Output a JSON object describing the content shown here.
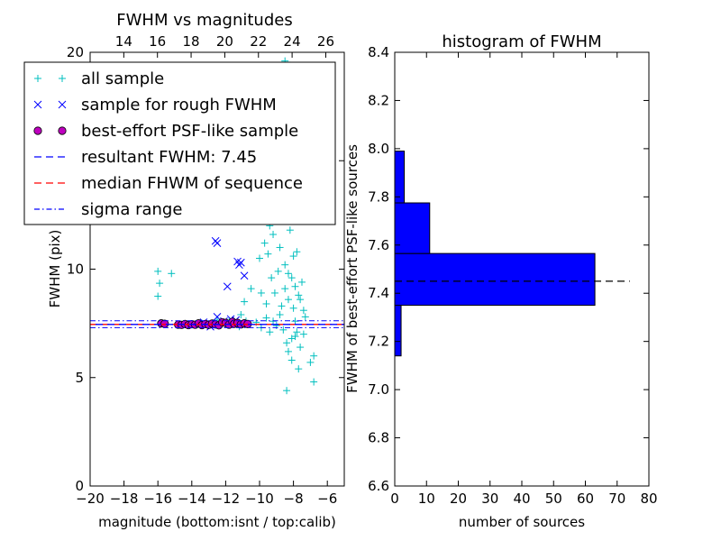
{
  "chart_data": [
    {
      "type": "scatter",
      "title": "FWHM vs magnitudes",
      "xlabel": "magnitude (bottom:isnt / top:calib)",
      "ylabel": "FWHM (pix)",
      "xlim": [
        -20,
        -5
      ],
      "ylim": [
        0,
        20
      ],
      "x_ticks": [
        -20,
        -18,
        -16,
        -14,
        -12,
        -10,
        -8,
        -6
      ],
      "x_tick_labels": [
        "−20",
        "−18",
        "−16",
        "−14",
        "−12",
        "−10",
        "−8",
        "−6"
      ],
      "y_ticks": [
        0,
        5,
        10,
        15,
        20
      ],
      "y_tick_labels": [
        "0",
        "5",
        "10",
        "15",
        "20"
      ],
      "top_xlim": [
        12,
        27.1
      ],
      "top_x_ticks": [
        14,
        16,
        18,
        20,
        22,
        24,
        26
      ],
      "top_x_tick_labels": [
        "14",
        "16",
        "18",
        "20",
        "22",
        "24",
        "26"
      ],
      "legend_position": "upper-left",
      "lines": {
        "resultant_fwhm": 7.45,
        "median_fwhm": 7.45,
        "sigma_range": [
          7.3,
          7.62
        ]
      },
      "series": [
        {
          "name": "all sample",
          "marker": "plus",
          "color": "#00bfbf",
          "points": [
            [
              -16,
              9.9
            ],
            [
              -15.9,
              9.35
            ],
            [
              -16,
              8.75
            ],
            [
              -15.2,
              9.8
            ],
            [
              -13.4,
              7.5
            ],
            [
              -12.5,
              7.65
            ],
            [
              -11.8,
              7.6
            ],
            [
              -11.2,
              7.35
            ],
            [
              -10.8,
              7.6
            ],
            [
              -10.2,
              7.55
            ],
            [
              -9.9,
              7.3
            ],
            [
              -9.6,
              7.75
            ],
            [
              -9.4,
              7.1
            ],
            [
              -9.2,
              7.6
            ],
            [
              -9,
              7.4
            ],
            [
              -8.8,
              7.9
            ],
            [
              -8.6,
              7.2
            ],
            [
              -8.4,
              6.6
            ],
            [
              -8.3,
              6.2
            ],
            [
              -8.1,
              5.8
            ],
            [
              -7.9,
              6.9
            ],
            [
              -7.7,
              5.4
            ],
            [
              -8.4,
              4.4
            ],
            [
              -6.8,
              4.8
            ],
            [
              -7,
              5.7
            ],
            [
              -6.8,
              6
            ],
            [
              -10,
              10.5
            ],
            [
              -9.7,
              11.2
            ],
            [
              -9.4,
              12
            ],
            [
              -9.2,
              11.6
            ],
            [
              -9,
              13
            ],
            [
              -8.8,
              11
            ],
            [
              -8.6,
              12.5
            ],
            [
              -8.5,
              10.2
            ],
            [
              -8.3,
              9.8
            ],
            [
              -8.2,
              11.8
            ],
            [
              -8,
              10.6
            ],
            [
              -7.9,
              9.2
            ],
            [
              -7.8,
              10.8
            ],
            [
              -7.6,
              8.6
            ],
            [
              -7.5,
              9.4
            ],
            [
              -7.4,
              8.1
            ],
            [
              -7.3,
              7.8
            ],
            [
              -9.6,
              8.4
            ],
            [
              -9.3,
              9.6
            ],
            [
              -9.1,
              8.9
            ],
            [
              -8.9,
              9.9
            ],
            [
              -8.7,
              8.3
            ],
            [
              -8.5,
              9.1
            ],
            [
              -8.3,
              8.6
            ],
            [
              -8.1,
              9.6
            ],
            [
              -8,
              8.2
            ],
            [
              -7.9,
              7.6
            ],
            [
              -7.7,
              8.8
            ],
            [
              -8.8,
              14.5
            ],
            [
              -8.6,
              15.5
            ],
            [
              -8.5,
              14.8
            ],
            [
              -8.3,
              16
            ],
            [
              -8.4,
              13.6
            ],
            [
              -8.2,
              12.8
            ],
            [
              -9.1,
              18.5
            ],
            [
              -8.5,
              19.6
            ],
            [
              -8.2,
              19.4
            ],
            [
              -8.9,
              17.3
            ],
            [
              -9.2,
              15.8
            ],
            [
              -10.5,
              9.1
            ],
            [
              -10.9,
              8.5
            ],
            [
              -11.1,
              7.9
            ],
            [
              -9.9,
              8.9
            ],
            [
              -9.5,
              10.7
            ],
            [
              -7.6,
              6.4
            ],
            [
              -7.8,
              7.1
            ],
            [
              -8.1,
              6.8
            ],
            [
              -7.4,
              7
            ]
          ]
        },
        {
          "name": "sample for rough FWHM",
          "marker": "x",
          "color": "#0000ff",
          "points": [
            [
              -12.6,
              11.3
            ],
            [
              -12.5,
              11.2
            ],
            [
              -11.3,
              10.35
            ],
            [
              -11.1,
              10.3
            ],
            [
              -11.2,
              10.2
            ],
            [
              -10.9,
              9.7
            ],
            [
              -11.9,
              9.2
            ],
            [
              -12.5,
              7.8
            ],
            [
              -11.7,
              7.7
            ],
            [
              -11.4,
              7.65
            ],
            [
              -12.9,
              7.35
            ],
            [
              -13.3,
              7.55
            ],
            [
              -11,
              7.5
            ],
            [
              -12.1,
              7.6
            ]
          ]
        },
        {
          "name": "best-effort PSF-like sample",
          "marker": "circle",
          "color": "#bf00bf",
          "points": [
            [
              -15.8,
              7.5
            ],
            [
              -15.6,
              7.48
            ],
            [
              -14.8,
              7.44
            ],
            [
              -14.6,
              7.43
            ],
            [
              -14.4,
              7.47
            ],
            [
              -14.2,
              7.42
            ],
            [
              -14,
              7.46
            ],
            [
              -13.8,
              7.44
            ],
            [
              -13.6,
              7.5
            ],
            [
              -13.4,
              7.42
            ],
            [
              -13.2,
              7.47
            ],
            [
              -13,
              7.43
            ],
            [
              -12.8,
              7.49
            ],
            [
              -12.6,
              7.45
            ],
            [
              -12.4,
              7.41
            ],
            [
              -12.2,
              7.55
            ],
            [
              -12,
              7.52
            ],
            [
              -11.8,
              7.44
            ],
            [
              -11.6,
              7.57
            ],
            [
              -11.5,
              7.48
            ],
            [
              -11.3,
              7.52
            ],
            [
              -11.1,
              7.45
            ],
            [
              -10.9,
              7.5
            ],
            [
              -10.7,
              7.47
            ]
          ]
        },
        {
          "name": "resultant FWHM: 7.45",
          "marker": "dashed-line",
          "color": "#0000ff"
        },
        {
          "name": "median FHWM of sequence",
          "marker": "dashed-line",
          "color": "#ff0000"
        },
        {
          "name": "sigma range",
          "marker": "dashdot-line",
          "color": "#0000ff"
        }
      ]
    },
    {
      "type": "bar",
      "orientation": "horizontal",
      "title": "histogram of FWHM",
      "xlabel": "number of sources",
      "ylabel": "FWHM of best-effort PSF-like sources",
      "xlim": [
        0,
        80
      ],
      "ylim": [
        6.6,
        8.4
      ],
      "x_ticks": [
        0,
        10,
        20,
        30,
        40,
        50,
        60,
        70,
        80
      ],
      "x_tick_labels": [
        "0",
        "10",
        "20",
        "30",
        "40",
        "50",
        "60",
        "70",
        "80"
      ],
      "y_ticks": [
        6.6,
        6.8,
        7.0,
        7.2,
        7.4,
        7.6,
        7.8,
        8.0,
        8.2,
        8.4
      ],
      "y_tick_labels": [
        "6.6",
        "6.8",
        "7.0",
        "7.2",
        "7.4",
        "7.6",
        "7.8",
        "8.0",
        "8.2",
        "8.4"
      ],
      "color": "#0000ff",
      "bins": [
        {
          "low": 7.14,
          "high": 7.35,
          "count": 2
        },
        {
          "low": 7.35,
          "high": 7.565,
          "count": 63
        },
        {
          "low": 7.565,
          "high": 7.775,
          "count": 11
        },
        {
          "low": 7.775,
          "high": 7.99,
          "count": 3
        }
      ],
      "reference_line": {
        "value": 7.45,
        "style": "dashed",
        "color": "#000000"
      }
    }
  ]
}
